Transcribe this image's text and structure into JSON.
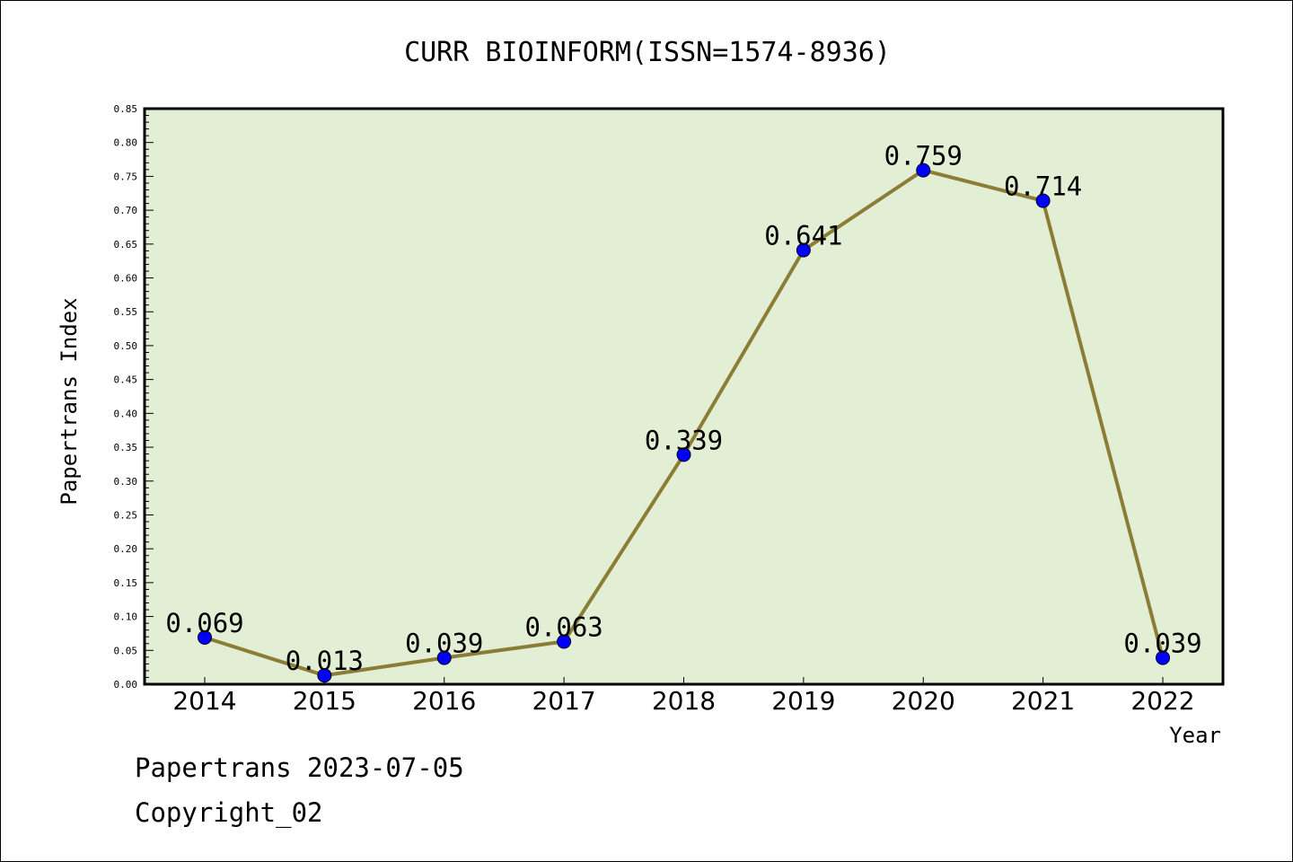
{
  "chart_data": {
    "type": "line",
    "title": "CURR BIOINFORM(ISSN=1574-8936)",
    "xlabel": "Year",
    "ylabel": "Papertrans Index",
    "categories": [
      "2014",
      "2015",
      "2016",
      "2017",
      "2018",
      "2019",
      "2020",
      "2021",
      "2022"
    ],
    "values": [
      0.069,
      0.013,
      0.039,
      0.063,
      0.339,
      0.641,
      0.759,
      0.714,
      0.039
    ],
    "data_labels": [
      "0.069",
      "0.013",
      "0.039",
      "0.063",
      "0.339",
      "0.641",
      "0.759",
      "0.714",
      "0.039"
    ],
    "ylim": [
      0,
      0.85
    ],
    "yticks": [
      "0.00",
      "0.05",
      "0.10",
      "0.15",
      "0.20",
      "0.25",
      "0.30",
      "0.35",
      "0.40",
      "0.45",
      "0.50",
      "0.55",
      "0.60",
      "0.65",
      "0.70",
      "0.75",
      "0.80",
      "0.85"
    ],
    "grid": false,
    "colors": {
      "plot_background": "#e2efd5",
      "line": "#8b7d36",
      "marker": "#0000ff"
    }
  },
  "footer": {
    "line1": "Papertrans 2023-07-05",
    "line2": "Copyright_02"
  }
}
